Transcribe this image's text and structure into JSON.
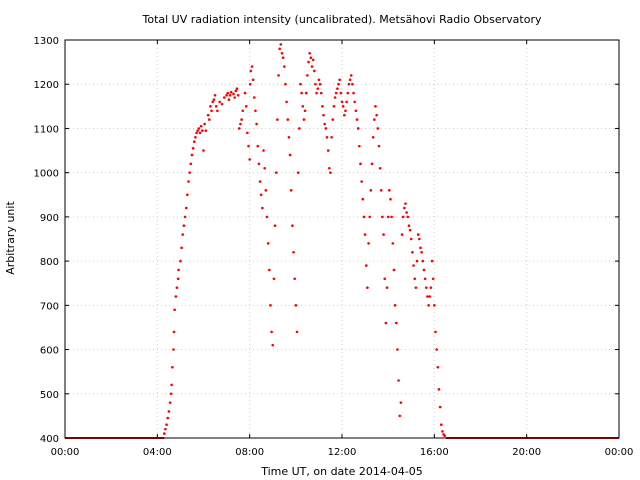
{
  "chart_data": {
    "type": "scatter",
    "title": "Total UV radiation intensity (uncalibrated). Metsähovi Radio Observatory",
    "xlabel": "Time UT, on date 2014-04-05",
    "ylabel": "Arbitrary unit",
    "xlim": [
      0,
      24
    ],
    "ylim": [
      400,
      1300
    ],
    "grid": true,
    "legend": "none",
    "x_ticks": [
      0,
      4,
      8,
      12,
      16,
      20,
      24
    ],
    "x_tick_labels": [
      "00:00",
      "04:00",
      "08:00",
      "12:00",
      "16:00",
      "20:00",
      "00:00"
    ],
    "y_ticks": [
      400,
      500,
      600,
      700,
      800,
      900,
      1000,
      1100,
      1200,
      1300
    ],
    "y_tick_labels": [
      "400",
      "500",
      "600",
      "700",
      "800",
      "900",
      "1000",
      "1100",
      "1200",
      "1300"
    ],
    "series": [
      {
        "color": "#ff0000",
        "baseline": {
          "y": 400,
          "x_ranges": [
            [
              0,
              4.3
            ],
            [
              16.5,
              24
            ]
          ]
        },
        "points": [
          [
            4.3,
            410
          ],
          [
            4.35,
            420
          ],
          [
            4.4,
            430
          ],
          [
            4.45,
            445
          ],
          [
            4.5,
            460
          ],
          [
            4.55,
            480
          ],
          [
            4.6,
            500
          ],
          [
            4.62,
            520
          ],
          [
            4.65,
            560
          ],
          [
            4.7,
            600
          ],
          [
            4.72,
            640
          ],
          [
            4.75,
            690
          ],
          [
            4.8,
            720
          ],
          [
            4.85,
            740
          ],
          [
            4.9,
            760
          ],
          [
            4.92,
            780
          ],
          [
            5.0,
            800
          ],
          [
            5.05,
            830
          ],
          [
            5.1,
            860
          ],
          [
            5.15,
            880
          ],
          [
            5.2,
            900
          ],
          [
            5.25,
            920
          ],
          [
            5.3,
            950
          ],
          [
            5.35,
            980
          ],
          [
            5.4,
            1000
          ],
          [
            5.45,
            1020
          ],
          [
            5.5,
            1040
          ],
          [
            5.55,
            1055
          ],
          [
            5.6,
            1070
          ],
          [
            5.65,
            1080
          ],
          [
            5.7,
            1090
          ],
          [
            5.75,
            1095
          ],
          [
            5.8,
            1100
          ],
          [
            5.85,
            1090
          ],
          [
            5.9,
            1105
          ],
          [
            5.95,
            1095
          ],
          [
            6.0,
            1050
          ],
          [
            6.05,
            1110
          ],
          [
            6.1,
            1095
          ],
          [
            6.2,
            1130
          ],
          [
            6.25,
            1120
          ],
          [
            6.3,
            1150
          ],
          [
            6.35,
            1140
          ],
          [
            6.4,
            1160
          ],
          [
            6.45,
            1165
          ],
          [
            6.5,
            1175
          ],
          [
            6.55,
            1150
          ],
          [
            6.6,
            1140
          ],
          [
            6.7,
            1160
          ],
          [
            6.8,
            1155
          ],
          [
            6.9,
            1170
          ],
          [
            7.0,
            1175
          ],
          [
            7.05,
            1180
          ],
          [
            7.1,
            1165
          ],
          [
            7.15,
            1175
          ],
          [
            7.2,
            1182
          ],
          [
            7.3,
            1178
          ],
          [
            7.35,
            1170
          ],
          [
            7.4,
            1185
          ],
          [
            7.45,
            1190
          ],
          [
            7.5,
            1175
          ],
          [
            7.55,
            1100
          ],
          [
            7.6,
            1110
          ],
          [
            7.65,
            1120
          ],
          [
            7.7,
            1140
          ],
          [
            7.8,
            1180
          ],
          [
            7.85,
            1150
          ],
          [
            7.9,
            1090
          ],
          [
            7.95,
            1060
          ],
          [
            8.0,
            1030
          ],
          [
            8.02,
            1200
          ],
          [
            8.05,
            1230
          ],
          [
            8.1,
            1240
          ],
          [
            8.15,
            1210
          ],
          [
            8.2,
            1170
          ],
          [
            8.25,
            1140
          ],
          [
            8.3,
            1110
          ],
          [
            8.35,
            1060
          ],
          [
            8.4,
            1020
          ],
          [
            8.45,
            980
          ],
          [
            8.5,
            950
          ],
          [
            8.55,
            920
          ],
          [
            8.6,
            1050
          ],
          [
            8.65,
            1010
          ],
          [
            8.7,
            960
          ],
          [
            8.75,
            900
          ],
          [
            8.8,
            840
          ],
          [
            8.85,
            780
          ],
          [
            8.9,
            700
          ],
          [
            8.95,
            640
          ],
          [
            9.0,
            610
          ],
          [
            9.05,
            760
          ],
          [
            9.1,
            880
          ],
          [
            9.15,
            1000
          ],
          [
            9.2,
            1120
          ],
          [
            9.25,
            1220
          ],
          [
            9.3,
            1280
          ],
          [
            9.35,
            1290
          ],
          [
            9.4,
            1270
          ],
          [
            9.45,
            1260
          ],
          [
            9.5,
            1240
          ],
          [
            9.55,
            1200
          ],
          [
            9.6,
            1160
          ],
          [
            9.65,
            1120
          ],
          [
            9.7,
            1080
          ],
          [
            9.75,
            1040
          ],
          [
            9.8,
            960
          ],
          [
            9.85,
            880
          ],
          [
            9.9,
            820
          ],
          [
            9.95,
            760
          ],
          [
            10.0,
            700
          ],
          [
            10.05,
            640
          ],
          [
            10.1,
            1000
          ],
          [
            10.15,
            1100
          ],
          [
            10.2,
            1200
          ],
          [
            10.25,
            1180
          ],
          [
            10.3,
            1150
          ],
          [
            10.35,
            1120
          ],
          [
            10.4,
            1140
          ],
          [
            10.45,
            1180
          ],
          [
            10.5,
            1220
          ],
          [
            10.55,
            1250
          ],
          [
            10.6,
            1270
          ],
          [
            10.65,
            1260
          ],
          [
            10.7,
            1240
          ],
          [
            10.75,
            1255
          ],
          [
            10.8,
            1230
          ],
          [
            10.85,
            1200
          ],
          [
            10.9,
            1180
          ],
          [
            10.95,
            1190
          ],
          [
            11.0,
            1210
          ],
          [
            11.05,
            1200
          ],
          [
            11.1,
            1180
          ],
          [
            11.15,
            1150
          ],
          [
            11.2,
            1130
          ],
          [
            11.25,
            1110
          ],
          [
            11.3,
            1100
          ],
          [
            11.35,
            1080
          ],
          [
            11.4,
            1050
          ],
          [
            11.45,
            1010
          ],
          [
            11.5,
            1000
          ],
          [
            11.55,
            1080
          ],
          [
            11.6,
            1120
          ],
          [
            11.65,
            1150
          ],
          [
            11.7,
            1170
          ],
          [
            11.75,
            1180
          ],
          [
            11.8,
            1190
          ],
          [
            11.85,
            1200
          ],
          [
            11.9,
            1210
          ],
          [
            11.95,
            1180
          ],
          [
            12.0,
            1160
          ],
          [
            12.05,
            1150
          ],
          [
            12.1,
            1130
          ],
          [
            12.15,
            1140
          ],
          [
            12.2,
            1160
          ],
          [
            12.25,
            1180
          ],
          [
            12.3,
            1200
          ],
          [
            12.35,
            1210
          ],
          [
            12.4,
            1220
          ],
          [
            12.45,
            1200
          ],
          [
            12.5,
            1180
          ],
          [
            12.55,
            1160
          ],
          [
            12.6,
            1140
          ],
          [
            12.65,
            1120
          ],
          [
            12.7,
            1100
          ],
          [
            12.75,
            1060
          ],
          [
            12.8,
            1020
          ],
          [
            12.85,
            980
          ],
          [
            12.9,
            940
          ],
          [
            12.95,
            900
          ],
          [
            13.0,
            860
          ],
          [
            13.05,
            790
          ],
          [
            13.1,
            740
          ],
          [
            13.15,
            840
          ],
          [
            13.2,
            900
          ],
          [
            13.25,
            960
          ],
          [
            13.3,
            1020
          ],
          [
            13.35,
            1080
          ],
          [
            13.4,
            1120
          ],
          [
            13.45,
            1150
          ],
          [
            13.5,
            1130
          ],
          [
            13.55,
            1100
          ],
          [
            13.6,
            1060
          ],
          [
            13.65,
            1010
          ],
          [
            13.7,
            960
          ],
          [
            13.75,
            900
          ],
          [
            13.8,
            860
          ],
          [
            13.85,
            760
          ],
          [
            13.9,
            660
          ],
          [
            13.95,
            740
          ],
          [
            14.0,
            900
          ],
          [
            14.05,
            960
          ],
          [
            14.1,
            940
          ],
          [
            14.15,
            900
          ],
          [
            14.2,
            840
          ],
          [
            14.25,
            780
          ],
          [
            14.3,
            700
          ],
          [
            14.35,
            660
          ],
          [
            14.4,
            600
          ],
          [
            14.45,
            530
          ],
          [
            14.5,
            450
          ],
          [
            14.55,
            480
          ],
          [
            14.6,
            860
          ],
          [
            14.65,
            900
          ],
          [
            14.7,
            920
          ],
          [
            14.75,
            930
          ],
          [
            14.8,
            910
          ],
          [
            14.85,
            900
          ],
          [
            14.9,
            880
          ],
          [
            14.95,
            870
          ],
          [
            15.0,
            850
          ],
          [
            15.05,
            820
          ],
          [
            15.1,
            790
          ],
          [
            15.15,
            760
          ],
          [
            15.2,
            740
          ],
          [
            15.25,
            800
          ],
          [
            15.3,
            860
          ],
          [
            15.35,
            850
          ],
          [
            15.4,
            830
          ],
          [
            15.45,
            820
          ],
          [
            15.5,
            800
          ],
          [
            15.55,
            780
          ],
          [
            15.6,
            760
          ],
          [
            15.65,
            740
          ],
          [
            15.7,
            720
          ],
          [
            15.75,
            700
          ],
          [
            15.8,
            720
          ],
          [
            15.85,
            740
          ],
          [
            15.9,
            800
          ],
          [
            15.95,
            760
          ],
          [
            16.0,
            700
          ],
          [
            16.05,
            640
          ],
          [
            16.1,
            600
          ],
          [
            16.15,
            560
          ],
          [
            16.2,
            510
          ],
          [
            16.25,
            470
          ],
          [
            16.3,
            430
          ],
          [
            16.35,
            415
          ],
          [
            16.4,
            408
          ],
          [
            16.45,
            405
          ]
        ]
      }
    ]
  }
}
